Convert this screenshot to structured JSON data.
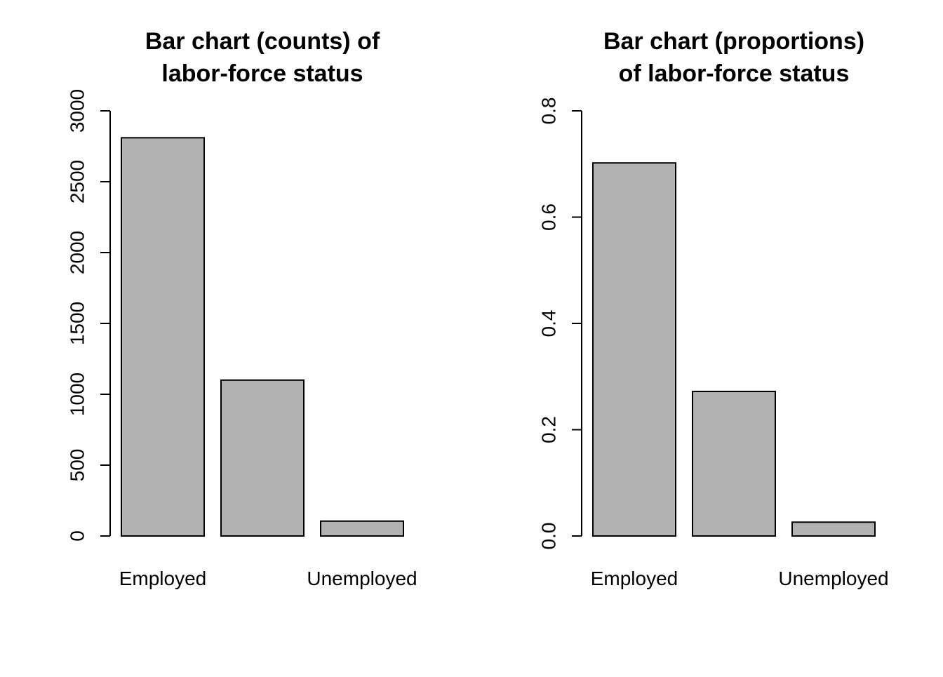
{
  "chart_data": [
    {
      "type": "bar",
      "title_lines": [
        "Bar chart (counts) of",
        "labor-force status"
      ],
      "categories": [
        "Employed",
        "",
        "Unemployed"
      ],
      "values": [
        2810,
        1100,
        105
      ],
      "ylim": [
        0,
        3000
      ],
      "yticks": [
        0,
        500,
        1000,
        1500,
        2000,
        2500,
        3000
      ],
      "ytick_labels": [
        "0",
        "500",
        "1000",
        "1500",
        "2000",
        "2500",
        "3000"
      ],
      "bar_color": "#b2b2b2",
      "border_color": "#000000",
      "grid": false
    },
    {
      "type": "bar",
      "title_lines": [
        "Bar chart (proportions)",
        "of labor-force status"
      ],
      "categories": [
        "Employed",
        "",
        "Unemployed"
      ],
      "values": [
        0.702,
        0.272,
        0.026
      ],
      "ylim": [
        0,
        0.8
      ],
      "yticks": [
        0,
        0.2,
        0.4,
        0.6,
        0.8
      ],
      "ytick_labels": [
        "0.0",
        "0.2",
        "0.4",
        "0.6",
        "0.8"
      ],
      "bar_color": "#b2b2b2",
      "border_color": "#000000",
      "grid": false
    }
  ]
}
